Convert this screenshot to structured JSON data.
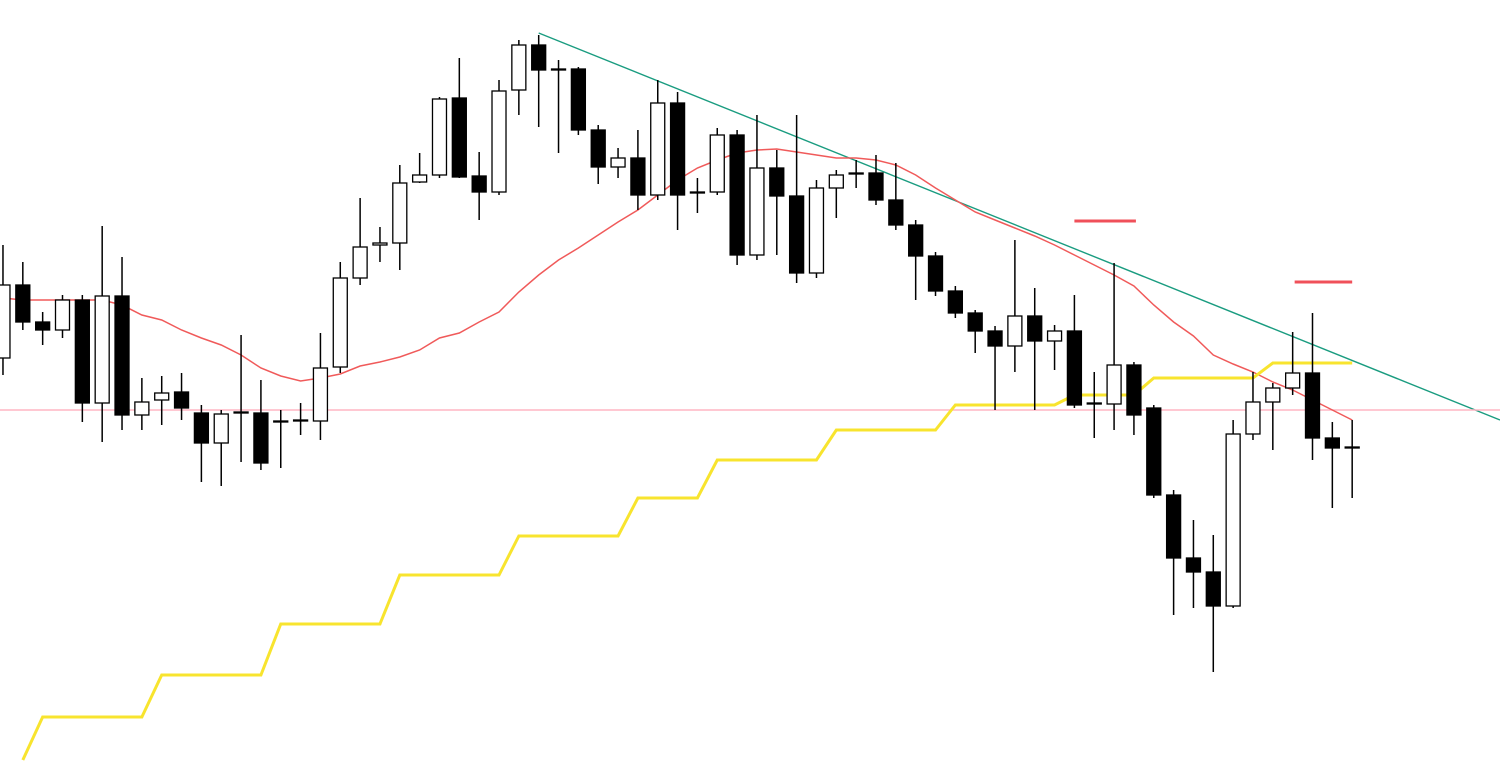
{
  "chart_data": {
    "type": "candlestick",
    "xlim": [
      -0.15,
      75.45
    ],
    "ylim": [
      0,
      772
    ],
    "up_color": "#ffffff",
    "down_color": "#000000",
    "edge_color": "#000000",
    "open": [
      414,
      487,
      450,
      442,
      472,
      369,
      476,
      357,
      372,
      380,
      359,
      329,
      359,
      359,
      350,
      351,
      351,
      405,
      494,
      527,
      529,
      590,
      597,
      674,
      596,
      580,
      682,
      727,
      702,
      703,
      642,
      605,
      614,
      577,
      669,
      579,
      580,
      637,
      517,
      604,
      576,
      499,
      584,
      598,
      599,
      572,
      547,
      516,
      481,
      459,
      441,
      426,
      456,
      431,
      441,
      368,
      368,
      407,
      364,
      277,
      214,
      200,
      166,
      338,
      370,
      384,
      399,
      334,
      325
    ],
    "high": [
      527,
      510,
      460,
      477,
      477,
      546,
      515,
      394,
      396,
      399,
      367,
      362,
      437,
      392,
      362,
      369,
      439,
      510,
      574,
      545,
      607,
      619,
      675,
      714,
      620,
      692,
      732,
      737,
      712,
      705,
      647,
      624,
      642,
      692,
      680,
      594,
      644,
      642,
      657,
      622,
      657,
      592,
      602,
      612,
      617,
      609,
      552,
      520,
      486,
      462,
      446,
      532,
      484,
      447,
      477,
      400,
      509,
      410,
      367,
      282,
      252,
      237,
      352,
      400,
      389,
      440,
      459,
      350,
      352
    ],
    "low": [
      397,
      442,
      427,
      434,
      350,
      330,
      342,
      342,
      347,
      352,
      290,
      286,
      310,
      302,
      304,
      337,
      332,
      399,
      487,
      510,
      502,
      589,
      594,
      594,
      552,
      577,
      657,
      645,
      619,
      637,
      588,
      594,
      562,
      572,
      542,
      559,
      577,
      507,
      512,
      517,
      489,
      494,
      554,
      584,
      567,
      542,
      472,
      476,
      454,
      419,
      362,
      400,
      362,
      402,
      364,
      334,
      342,
      337,
      274,
      157,
      164,
      100,
      164,
      332,
      322,
      377,
      312,
      264,
      274
    ],
    "close": [
      487,
      450,
      442,
      472,
      369,
      476,
      357,
      370,
      379,
      364,
      329,
      358,
      360,
      309,
      351,
      352,
      404,
      494,
      525,
      529,
      589,
      597,
      673,
      595,
      580,
      681,
      727,
      702,
      703,
      642,
      605,
      614,
      577,
      669,
      577,
      580,
      637,
      517,
      604,
      576,
      499,
      584,
      597,
      599,
      572,
      547,
      516,
      481,
      459,
      441,
      426,
      456,
      431,
      441,
      367,
      369,
      407,
      357,
      277,
      214,
      200,
      166,
      338,
      370,
      384,
      399,
      334,
      324,
      324
    ],
    "series": [
      {
        "color": "#f05a5a",
        "values": [
          474,
          472,
          472,
          472,
          472,
          472,
          467,
          457,
          452,
          442,
          434,
          427,
          417,
          404,
          396,
          391,
          394,
          398,
          406,
          410,
          415,
          422,
          434,
          439,
          450,
          460,
          480,
          497,
          512,
          524,
          537,
          550,
          562,
          577,
          592,
          604,
          612,
          619,
          622,
          623,
          620,
          617,
          614,
          614,
          612,
          607,
          597,
          584,
          572,
          560,
          552,
          544,
          536,
          527,
          517,
          507,
          497,
          486,
          467,
          450,
          436,
          417,
          408,
          400,
          390,
          382,
          372,
          362,
          352
        ]
      },
      {
        "color": "#f8e42e",
        "values": [
          null,
          12,
          55,
          55,
          55,
          55,
          55,
          55,
          97,
          97,
          97,
          97,
          97,
          97,
          148,
          148,
          148,
          148,
          148,
          148,
          197,
          197,
          197,
          197,
          197,
          197,
          236,
          236,
          236,
          236,
          236,
          236,
          274,
          274,
          274,
          274,
          312,
          312,
          312,
          312,
          312,
          312,
          342,
          342,
          342,
          342,
          342,
          342,
          367,
          367,
          367,
          367,
          367,
          367,
          377,
          377,
          377,
          377,
          394,
          394,
          394,
          394,
          394,
          394,
          409,
          409,
          409,
          409,
          409
        ]
      }
    ],
    "lines": [
      {
        "color": "#1a9c80",
        "x": [
          27,
          75.45
        ],
        "values": [
          739,
          352
        ]
      },
      {
        "color": "#ffb6c4",
        "x": [
          -0.15,
          75.45
        ],
        "values": [
          362,
          362
        ]
      },
      {
        "color": "#f0505a",
        "x": [
          54,
          57.1
        ],
        "values": [
          551,
          551
        ]
      },
      {
        "color": "#f0505a",
        "x": [
          65.1,
          68
        ],
        "values": [
          490,
          490
        ]
      }
    ]
  }
}
